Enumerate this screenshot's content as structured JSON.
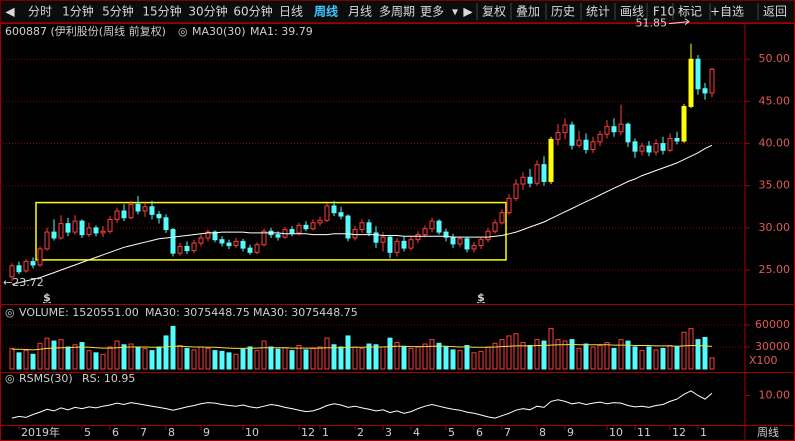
{
  "toolbar": {
    "left": [
      "分时",
      "1分钟",
      "5分钟",
      "15分钟",
      "30分钟",
      "60分钟",
      "日线",
      "周线",
      "月线",
      "多周期",
      "更多"
    ],
    "right": [
      "复权",
      "叠加",
      "历史",
      "统计",
      "画线",
      "F10",
      "标记",
      "+自选",
      "返回"
    ],
    "active_index": 7
  },
  "chart_data": [
    {
      "type": "candlestick",
      "title": "600887 (伊利股份(周线 前复权)",
      "indicator": "MA30(30)",
      "legend": "MA1: 39.79",
      "up_color": "#ff3c3c",
      "down_color": "#54fcfc",
      "highlight_color": "#ffff00",
      "highlight": [
        77,
        96,
        97
      ],
      "candles": [
        [
          24.2,
          25.5,
          25.8,
          23.72
        ],
        [
          25.5,
          24.8,
          26.0,
          24.5
        ],
        [
          24.9,
          26.0,
          26.3,
          24.7
        ],
        [
          26.0,
          25.6,
          26.5,
          25.2
        ],
        [
          25.6,
          27.5,
          27.8,
          25.4
        ],
        [
          27.5,
          29.5,
          30.0,
          27.3
        ],
        [
          29.5,
          28.8,
          31.0,
          28.5
        ],
        [
          28.8,
          30.5,
          31.5,
          28.6
        ],
        [
          30.5,
          29.5,
          31.2,
          29.0
        ],
        [
          29.5,
          30.8,
          31.5,
          29.2
        ],
        [
          30.8,
          29.2,
          31.0,
          28.8
        ],
        [
          29.2,
          30.0,
          30.6,
          28.9
        ],
        [
          30.0,
          29.4,
          30.3,
          29.0
        ],
        [
          29.4,
          29.6,
          30.2,
          28.9
        ],
        [
          29.6,
          31.0,
          31.4,
          29.3
        ],
        [
          31.0,
          32.0,
          32.4,
          30.6
        ],
        [
          32.0,
          31.2,
          32.8,
          30.8
        ],
        [
          31.2,
          32.8,
          33.2,
          31.0
        ],
        [
          32.8,
          32.0,
          33.8,
          31.6
        ],
        [
          32.0,
          32.5,
          33.0,
          31.3
        ],
        [
          32.5,
          31.6,
          33.2,
          31.0
        ],
        [
          31.6,
          31.2,
          32.0,
          30.5
        ],
        [
          31.2,
          29.8,
          31.6,
          29.4
        ],
        [
          29.8,
          27.0,
          30.0,
          26.6
        ],
        [
          27.0,
          27.8,
          28.2,
          26.7
        ],
        [
          27.8,
          27.3,
          28.4,
          26.9
        ],
        [
          27.3,
          28.2,
          28.6,
          27.0
        ],
        [
          28.2,
          28.8,
          29.2,
          27.8
        ],
        [
          28.8,
          29.5,
          29.8,
          28.4
        ],
        [
          29.5,
          28.6,
          29.7,
          28.3
        ],
        [
          28.6,
          28.2,
          29.0,
          27.8
        ],
        [
          28.2,
          27.9,
          28.6,
          27.5
        ],
        [
          27.9,
          28.4,
          28.8,
          27.6
        ],
        [
          28.4,
          27.6,
          28.7,
          27.2
        ],
        [
          27.6,
          27.1,
          28.0,
          26.8
        ],
        [
          27.1,
          28.0,
          28.3,
          26.9
        ],
        [
          28.0,
          29.6,
          29.9,
          27.8
        ],
        [
          29.6,
          29.2,
          30.0,
          28.8
        ],
        [
          29.2,
          28.9,
          29.6,
          28.5
        ],
        [
          28.9,
          29.8,
          30.1,
          28.7
        ],
        [
          29.8,
          29.4,
          30.2,
          29.0
        ],
        [
          29.4,
          30.3,
          30.6,
          29.1
        ],
        [
          30.3,
          29.9,
          30.8,
          29.6
        ],
        [
          29.9,
          30.6,
          31.0,
          29.7
        ],
        [
          30.6,
          30.9,
          31.3,
          30.2
        ],
        [
          30.9,
          32.6,
          32.9,
          30.7
        ],
        [
          32.6,
          31.8,
          33.2,
          31.4
        ],
        [
          31.8,
          31.4,
          32.5,
          31.0
        ],
        [
          31.4,
          28.8,
          31.6,
          28.4
        ],
        [
          28.8,
          29.8,
          30.2,
          28.5
        ],
        [
          29.8,
          30.6,
          31.0,
          29.4
        ],
        [
          30.6,
          29.4,
          31.0,
          29.0
        ],
        [
          29.4,
          28.3,
          30.2,
          27.6
        ],
        [
          28.3,
          28.9,
          29.5,
          27.2
        ],
        [
          28.9,
          27.1,
          29.2,
          26.4
        ],
        [
          27.1,
          28.4,
          28.8,
          26.6
        ],
        [
          28.4,
          27.6,
          29.0,
          27.2
        ],
        [
          27.6,
          28.6,
          29.0,
          27.3
        ],
        [
          28.6,
          29.2,
          29.6,
          28.2
        ],
        [
          29.2,
          29.9,
          30.3,
          28.9
        ],
        [
          29.9,
          30.8,
          31.2,
          29.5
        ],
        [
          30.8,
          29.5,
          31.0,
          29.2
        ],
        [
          29.5,
          28.9,
          29.9,
          28.4
        ],
        [
          28.9,
          28.1,
          29.3,
          27.6
        ],
        [
          28.1,
          28.7,
          29.0,
          27.7
        ],
        [
          28.7,
          27.5,
          28.9,
          27.1
        ],
        [
          27.5,
          27.9,
          28.3,
          27.1
        ],
        [
          27.9,
          28.6,
          28.9,
          27.5
        ],
        [
          28.6,
          29.6,
          30.0,
          28.3
        ],
        [
          29.6,
          30.6,
          31.0,
          29.3
        ],
        [
          30.6,
          31.8,
          32.2,
          30.4
        ],
        [
          31.8,
          33.5,
          34.0,
          31.6
        ],
        [
          33.5,
          35.2,
          35.8,
          33.2
        ],
        [
          35.2,
          36.0,
          36.6,
          34.5
        ],
        [
          36.0,
          35.3,
          37.0,
          34.8
        ],
        [
          35.3,
          37.5,
          38.0,
          35.0
        ],
        [
          37.5,
          35.5,
          38.5,
          35.0
        ],
        [
          35.5,
          40.5,
          40.8,
          35.2
        ],
        [
          40.5,
          41.3,
          42.3,
          39.8
        ],
        [
          41.3,
          42.2,
          43.0,
          40.5
        ],
        [
          42.2,
          39.8,
          42.6,
          39.3
        ],
        [
          39.8,
          40.4,
          41.5,
          39.5
        ],
        [
          40.4,
          39.3,
          41.2,
          38.8
        ],
        [
          39.3,
          40.2,
          40.8,
          38.9
        ],
        [
          40.2,
          41.1,
          41.5,
          39.7
        ],
        [
          41.1,
          42.0,
          42.8,
          40.6
        ],
        [
          42.0,
          41.4,
          43.0,
          40.8
        ],
        [
          41.4,
          42.3,
          44.6,
          41.0
        ],
        [
          42.3,
          40.2,
          42.5,
          39.6
        ],
        [
          40.2,
          39.1,
          40.6,
          38.3
        ],
        [
          39.1,
          39.7,
          40.1,
          38.6
        ],
        [
          39.7,
          39.0,
          40.3,
          38.5
        ],
        [
          39.0,
          40.0,
          40.5,
          38.6
        ],
        [
          40.0,
          39.2,
          40.8,
          38.7
        ],
        [
          39.2,
          40.6,
          41.2,
          39.0
        ],
        [
          40.6,
          40.3,
          41.4,
          39.9
        ],
        [
          40.3,
          44.4,
          44.7,
          40.1
        ],
        [
          44.4,
          50.0,
          51.85,
          44.2
        ],
        [
          50.0,
          46.5,
          50.5,
          45.8
        ],
        [
          46.5,
          46.0,
          47.2,
          45.2
        ],
        [
          46.0,
          48.8,
          49.0,
          45.5
        ]
      ],
      "ma": {
        "color": "#ffffff",
        "values": [
          23.3,
          23.5,
          23.7,
          23.9,
          24.1,
          24.4,
          24.7,
          25.0,
          25.3,
          25.6,
          25.9,
          26.2,
          26.5,
          26.8,
          27.1,
          27.4,
          27.7,
          27.9,
          28.1,
          28.3,
          28.5,
          28.7,
          28.8,
          28.9,
          29.0,
          29.1,
          29.2,
          29.3,
          29.4,
          29.4,
          29.5,
          29.5,
          29.5,
          29.5,
          29.4,
          29.4,
          29.4,
          29.4,
          29.4,
          29.3,
          29.3,
          29.3,
          29.3,
          29.2,
          29.2,
          29.2,
          29.3,
          29.3,
          29.3,
          29.2,
          29.2,
          29.2,
          29.2,
          29.1,
          29.1,
          29.1,
          29.0,
          29.0,
          29.0,
          29.0,
          29.0,
          29.0,
          29.0,
          28.9,
          28.9,
          28.9,
          28.9,
          28.9,
          28.9,
          29.0,
          29.1,
          29.3,
          29.5,
          29.8,
          30.1,
          30.4,
          30.7,
          31.1,
          31.5,
          31.9,
          32.3,
          32.7,
          33.1,
          33.5,
          33.9,
          34.3,
          34.7,
          35.1,
          35.5,
          35.8,
          36.2,
          36.5,
          36.8,
          37.1,
          37.4,
          37.7,
          38.1,
          38.5,
          38.9,
          39.4,
          39.79
        ]
      },
      "box": {
        "from": 4,
        "to": 70,
        "low": 26.2,
        "high": 33.0,
        "color": "#ffff00"
      },
      "high_label": "51.85",
      "low_label": "←23.72",
      "markers": [
        {
          "index": 5,
          "label": "$"
        },
        {
          "index": 67,
          "label": "$"
        }
      ],
      "ylim": [
        20.97,
        54.18
      ],
      "yticks": [
        {
          "value": 25,
          "label": "25.00"
        },
        {
          "value": 30,
          "label": "30.00"
        },
        {
          "value": 35,
          "label": "35.00"
        },
        {
          "value": 40,
          "label": "40.00"
        },
        {
          "value": 45,
          "label": "45.00"
        },
        {
          "value": 50,
          "label": "50.00"
        }
      ],
      "grid": true,
      "dates": [
        null,
        "2019年",
        null,
        null,
        null,
        null,
        null,
        null,
        null,
        null,
        "5",
        null,
        null,
        null,
        "6",
        null,
        null,
        null,
        "7",
        null,
        null,
        null,
        "8",
        null,
        null,
        null,
        null,
        "9",
        null,
        null,
        null,
        null,
        null,
        "10",
        null,
        null,
        null,
        null,
        null,
        null,
        null,
        "12",
        null,
        null,
        "1",
        null,
        null,
        null,
        null,
        "2",
        null,
        null,
        null,
        "3",
        null,
        null,
        null,
        "4",
        null,
        null,
        null,
        null,
        "5",
        null,
        null,
        null,
        "6",
        null,
        null,
        null,
        "7",
        null,
        null,
        null,
        null,
        "8",
        null,
        null,
        null,
        "9",
        null,
        null,
        null,
        null,
        null,
        "10",
        null,
        null,
        null,
        "11",
        null,
        null,
        null,
        null,
        "12",
        null,
        null,
        null,
        "1",
        null,
        null
      ]
    },
    {
      "type": "volume",
      "title": "VOLUME: 1520551.00",
      "legend": "MA30: 3075448.75",
      "legend2": "MA30: 3075448.75",
      "values": [
        28000,
        22000,
        25000,
        20000,
        35000,
        42000,
        38000,
        40000,
        30000,
        33000,
        36000,
        25000,
        22000,
        20000,
        30000,
        38000,
        33000,
        34000,
        30000,
        28000,
        25000,
        30000,
        45000,
        58000,
        32000,
        28000,
        26000,
        30000,
        28000,
        25000,
        24000,
        22000,
        20000,
        27000,
        30000,
        25000,
        38000,
        30000,
        27000,
        29000,
        25000,
        32000,
        26000,
        28000,
        30000,
        42000,
        33000,
        30000,
        45000,
        30000,
        28000,
        34000,
        33000,
        30000,
        42000,
        36000,
        30000,
        28000,
        30000,
        34000,
        40000,
        35000,
        30000,
        26000,
        25000,
        32000,
        22000,
        24000,
        30000,
        35000,
        40000,
        45000,
        48000,
        36000,
        32000,
        40000,
        38000,
        55000,
        40000,
        38000,
        40000,
        28000,
        34000,
        30000,
        32000,
        36000,
        28000,
        40000,
        38000,
        30000,
        25000,
        30000,
        26000,
        28000,
        32000,
        30000,
        50000,
        55000,
        40000,
        43000,
        15205.51
      ],
      "ma": {
        "color": "#e8e050",
        "values": [
          27000,
          27000,
          26500,
          26000,
          27000,
          28000,
          28500,
          29000,
          29000,
          29500,
          30000,
          29500,
          29000,
          28500,
          28500,
          29000,
          29500,
          30000,
          30000,
          30000,
          29500,
          29500,
          30000,
          31000,
          31000,
          30500,
          30000,
          30000,
          29500,
          29500,
          29000,
          28500,
          28000,
          28000,
          28500,
          28500,
          29000,
          29000,
          29000,
          29000,
          28500,
          28500,
          28500,
          28500,
          28500,
          29000,
          29000,
          29000,
          29500,
          29500,
          29500,
          30000,
          30000,
          30000,
          30500,
          31000,
          31000,
          30500,
          30500,
          30500,
          31000,
          31000,
          31000,
          30500,
          30000,
          30000,
          29500,
          29500,
          29500,
          30000,
          30500,
          31000,
          31500,
          31500,
          31500,
          32000,
          32000,
          32500,
          33000,
          33000,
          33500,
          33000,
          33000,
          33000,
          33000,
          33000,
          32500,
          32500,
          32500,
          32000,
          32000,
          32000,
          31500,
          31500,
          31500,
          31000,
          31500,
          32000,
          32000,
          31500,
          30754.4875
        ]
      },
      "ylim": [
        0,
        66700
      ],
      "yticks": [
        30000,
        60000
      ],
      "unit": "X100",
      "grid": true
    },
    {
      "type": "line",
      "title": "RSMS(30)",
      "legend": "RS: 10.95",
      "color": "#ffffff",
      "values": [
        0.5,
        1.2,
        0.8,
        2.0,
        3.0,
        4.2,
        3.5,
        4.8,
        4.0,
        5.0,
        4.5,
        5.2,
        4.8,
        5.5,
        6.0,
        6.8,
        6.2,
        7.0,
        6.5,
        6.0,
        5.5,
        5.0,
        4.5,
        3.8,
        4.5,
        5.2,
        5.8,
        6.5,
        7.0,
        6.8,
        6.2,
        5.8,
        5.5,
        6.0,
        5.2,
        4.8,
        5.5,
        6.2,
        5.8,
        5.0,
        4.5,
        3.8,
        3.2,
        3.5,
        4.5,
        5.8,
        6.5,
        6.0,
        5.0,
        5.5,
        4.8,
        4.2,
        3.5,
        4.0,
        2.8,
        3.5,
        2.5,
        3.2,
        4.5,
        5.5,
        6.2,
        5.5,
        4.8,
        4.2,
        3.8,
        3.0,
        2.5,
        1.8,
        1.0,
        0.5,
        1.5,
        2.5,
        3.8,
        4.5,
        4.0,
        5.5,
        5.0,
        7.5,
        8.2,
        7.5,
        6.5,
        7.0,
        6.2,
        6.8,
        7.2,
        6.5,
        7.0,
        6.8,
        5.8,
        5.2,
        5.5,
        5.0,
        5.8,
        6.2,
        7.5,
        8.5,
        10.5,
        12.0,
        10.0,
        8.5,
        10.95
      ],
      "ylim": [
        -2,
        14
      ],
      "yticks": [
        {
          "value": 10,
          "label": "10.00"
        }
      ]
    }
  ],
  "footer": "周线"
}
